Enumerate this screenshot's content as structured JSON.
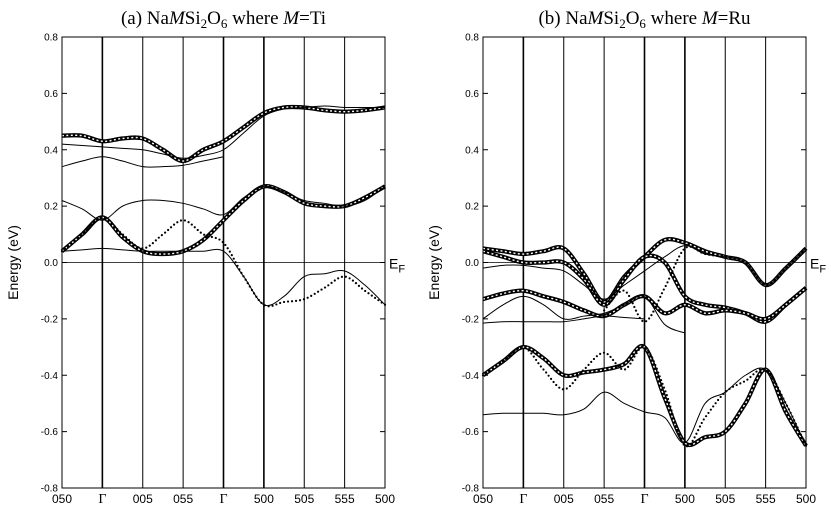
{
  "chart_data": [
    {
      "type": "line",
      "title_parts": {
        "pre": "(a) Na",
        "italic": "M",
        "mid1": "Si",
        "sub1": "2",
        "mid2": "O",
        "sub2": "6",
        "where": "  where ",
        "italic2": "M",
        "post": "=Ti"
      },
      "ylabel": "Energy (eV)",
      "fermi_label": {
        "main": "E",
        "sub": "F"
      },
      "ylim": [
        -0.8,
        0.8
      ],
      "yticks": [
        "0.8",
        "0.6",
        "0.4",
        "0.2",
        "0.0",
        "-0.2",
        "-0.4",
        "-0.6",
        "-0.8"
      ],
      "kpoints": [
        "050",
        "Γ",
        "005",
        "055",
        "Γ",
        "500",
        "505",
        "555",
        "500"
      ],
      "kpoint_x": [
        0,
        1,
        2,
        3,
        4,
        5,
        6,
        7,
        8
      ],
      "bands": [
        {
          "style": "thick",
          "x": [
            0,
            0.5,
            1,
            1.5,
            2,
            2.5,
            3,
            3.5,
            4,
            4.5,
            5,
            5.5,
            6,
            6.5,
            7,
            7.5,
            8
          ],
          "y": [
            0.45,
            0.45,
            0.43,
            0.44,
            0.44,
            0.4,
            0.36,
            0.4,
            0.43,
            0.48,
            0.53,
            0.55,
            0.55,
            0.54,
            0.535,
            0.54,
            0.55
          ]
        },
        {
          "style": "thin",
          "x": [
            0,
            0.5,
            1,
            1.5,
            2,
            2.5,
            3,
            3.5,
            4,
            4.5,
            5,
            5.5,
            6,
            6.5,
            7,
            7.5,
            8
          ],
          "y": [
            0.42,
            0.415,
            0.41,
            0.405,
            0.4,
            0.385,
            0.37,
            0.38,
            0.4,
            0.46,
            0.52,
            0.545,
            0.55,
            0.555,
            0.55,
            0.55,
            0.55
          ]
        },
        {
          "style": "thin",
          "x": [
            0,
            0.5,
            1,
            1.5,
            2,
            2.5,
            3,
            3.5,
            4
          ],
          "y": [
            0.34,
            0.36,
            0.375,
            0.36,
            0.34,
            0.34,
            0.345,
            0.36,
            0.375
          ]
        },
        {
          "style": "thick",
          "x": [
            0,
            0.5,
            1,
            1.5,
            2,
            2.5,
            3,
            3.5,
            4,
            4.5,
            5,
            5.5,
            6,
            6.5,
            7,
            7.5,
            8
          ],
          "y": [
            0.04,
            0.1,
            0.16,
            0.09,
            0.04,
            0.03,
            0.04,
            0.08,
            0.15,
            0.22,
            0.27,
            0.25,
            0.21,
            0.2,
            0.2,
            0.23,
            0.27
          ]
        },
        {
          "style": "thin",
          "x": [
            0,
            0.5,
            1,
            1.5,
            2,
            2.5,
            3,
            3.5,
            4,
            4.5,
            5,
            5.5,
            6,
            6.5,
            7,
            7.5,
            8
          ],
          "y": [
            0.22,
            0.19,
            0.15,
            0.2,
            0.22,
            0.22,
            0.21,
            0.19,
            0.17,
            0.23,
            0.27,
            0.25,
            0.22,
            0.21,
            0.2,
            0.22,
            0.27
          ]
        },
        {
          "style": "dotted",
          "x": [
            0,
            0.5,
            1,
            1.5,
            2,
            2.5,
            3,
            3.5,
            4,
            4.5,
            5,
            5.5,
            6,
            6.5,
            7,
            7.5,
            8
          ],
          "y": [
            0.04,
            0.1,
            0.16,
            0.1,
            0.05,
            0.1,
            0.15,
            0.1,
            0.07,
            -0.05,
            -0.15,
            -0.14,
            -0.13,
            -0.09,
            -0.05,
            -0.1,
            -0.15
          ]
        },
        {
          "style": "thin",
          "x": [
            0,
            0.5,
            1,
            1.5,
            2,
            2.5,
            3,
            3.5,
            4,
            4.5,
            5,
            5.5,
            6,
            6.5,
            7,
            7.5,
            8
          ],
          "y": [
            0.04,
            0.045,
            0.05,
            0.045,
            0.04,
            0.04,
            0.04,
            0.04,
            0.04,
            -0.05,
            -0.15,
            -0.12,
            -0.05,
            -0.04,
            -0.03,
            -0.08,
            -0.15
          ]
        }
      ]
    },
    {
      "type": "line",
      "title_parts": {
        "pre": "(b) Na",
        "italic": "M",
        "mid1": "Si",
        "sub1": "2",
        "mid2": "O",
        "sub2": "6",
        "where": "  where ",
        "italic2": "M",
        "post": "=Ru"
      },
      "ylabel": "Energy (eV)",
      "fermi_label": {
        "main": "E",
        "sub": "F"
      },
      "ylim": [
        -0.8,
        0.8
      ],
      "yticks": [
        "0.8",
        "0.6",
        "0.4",
        "0.2",
        "0.0",
        "-0.2",
        "-0.4",
        "-0.6",
        "-0.8"
      ],
      "kpoints": [
        "050",
        "Γ",
        "005",
        "055",
        "Γ",
        "500",
        "505",
        "555",
        "500"
      ],
      "kpoint_x": [
        0,
        1,
        2,
        3,
        4,
        5,
        6,
        7,
        8
      ],
      "bands": [
        {
          "style": "thick",
          "x": [
            0,
            0.5,
            1,
            1.5,
            2,
            2.5,
            3,
            3.5,
            4,
            4.5,
            5,
            5.5,
            6,
            6.5,
            7,
            7.5,
            8
          ],
          "y": [
            0.05,
            0.04,
            0.03,
            0.04,
            0.05,
            -0.04,
            -0.14,
            -0.05,
            0.02,
            0.08,
            0.07,
            0.04,
            0.02,
            0.0,
            -0.08,
            -0.02,
            0.05
          ]
        },
        {
          "style": "thick",
          "x": [
            0,
            0.5,
            1,
            1.5,
            2,
            2.5,
            3,
            3.5,
            4,
            4.5,
            5,
            5.5,
            6,
            6.5,
            7,
            7.5,
            8
          ],
          "y": [
            0.04,
            0.02,
            0.0,
            0.0,
            0.0,
            -0.06,
            -0.15,
            -0.06,
            0.02,
            0.0,
            -0.12,
            -0.15,
            -0.16,
            -0.18,
            -0.21,
            -0.15,
            -0.09
          ]
        },
        {
          "style": "thin",
          "x": [
            0,
            0.5,
            1,
            1.5,
            2,
            2.5,
            3,
            3.5,
            4,
            4.5,
            5,
            5.5,
            6,
            6.5,
            7,
            7.5,
            8
          ],
          "y": [
            -0.02,
            -0.01,
            -0.01,
            -0.02,
            -0.03,
            -0.08,
            -0.13,
            -0.08,
            -0.03,
            0.02,
            0.06,
            0.03,
            0.02,
            0.0,
            -0.08,
            -0.02,
            0.05
          ]
        },
        {
          "style": "thick",
          "x": [
            0,
            0.5,
            1,
            1.5,
            2,
            2.5,
            3,
            3.5,
            4,
            4.5,
            5,
            5.5,
            6,
            6.5,
            7,
            7.5,
            8
          ],
          "y": [
            -0.13,
            -0.11,
            -0.1,
            -0.12,
            -0.14,
            -0.17,
            -0.19,
            -0.15,
            -0.12,
            -0.18,
            -0.15,
            -0.18,
            -0.17,
            -0.18,
            -0.2,
            -0.15,
            -0.09
          ]
        },
        {
          "style": "thin",
          "x": [
            0,
            0.5,
            1,
            1.5,
            2,
            2.5,
            3,
            3.5,
            4,
            4.5,
            5
          ],
          "y": [
            -0.2,
            -0.15,
            -0.12,
            -0.15,
            -0.2,
            -0.19,
            -0.18,
            -0.15,
            -0.12,
            -0.22,
            -0.25
          ]
        },
        {
          "style": "thin",
          "x": [
            0,
            0.5,
            1,
            1.5,
            2,
            2.5,
            3,
            3.5,
            4
          ],
          "y": [
            -0.215,
            -0.21,
            -0.21,
            -0.21,
            -0.21,
            -0.2,
            -0.19,
            -0.195,
            -0.2
          ]
        },
        {
          "style": "dotted",
          "x": [
            3,
            3.5,
            4,
            4.5,
            5,
            5.5,
            6
          ],
          "y": [
            -0.17,
            -0.1,
            -0.21,
            -0.09,
            0.05,
            0.03,
            0.02
          ]
        },
        {
          "style": "thick",
          "x": [
            0,
            0.5,
            1,
            1.5,
            2,
            2.5,
            3,
            3.5,
            4,
            4.5,
            5,
            5.5,
            6,
            6.5,
            7,
            7.5,
            8
          ],
          "y": [
            -0.4,
            -0.35,
            -0.3,
            -0.34,
            -0.4,
            -0.39,
            -0.38,
            -0.36,
            -0.3,
            -0.48,
            -0.64,
            -0.62,
            -0.6,
            -0.5,
            -0.38,
            -0.53,
            -0.65
          ]
        },
        {
          "style": "dotted",
          "x": [
            0,
            0.5,
            1,
            1.5,
            2,
            2.5,
            3,
            3.5,
            4,
            4.5,
            5,
            5.5,
            6,
            6.5,
            7,
            7.5,
            8
          ],
          "y": [
            -0.4,
            -0.35,
            -0.3,
            -0.38,
            -0.45,
            -0.38,
            -0.32,
            -0.38,
            -0.3,
            -0.45,
            -0.65,
            -0.55,
            -0.46,
            -0.42,
            -0.38,
            -0.5,
            -0.65
          ]
        },
        {
          "style": "thin",
          "x": [
            0,
            0.5,
            1,
            1.5,
            2,
            2.5,
            3,
            3.5,
            4,
            4.5,
            5,
            5.5,
            6,
            6.5,
            7,
            7.5,
            8
          ],
          "y": [
            -0.54,
            -0.535,
            -0.535,
            -0.535,
            -0.54,
            -0.52,
            -0.46,
            -0.5,
            -0.53,
            -0.55,
            -0.64,
            -0.5,
            -0.46,
            -0.4,
            -0.38,
            -0.5,
            -0.65
          ]
        }
      ]
    }
  ]
}
